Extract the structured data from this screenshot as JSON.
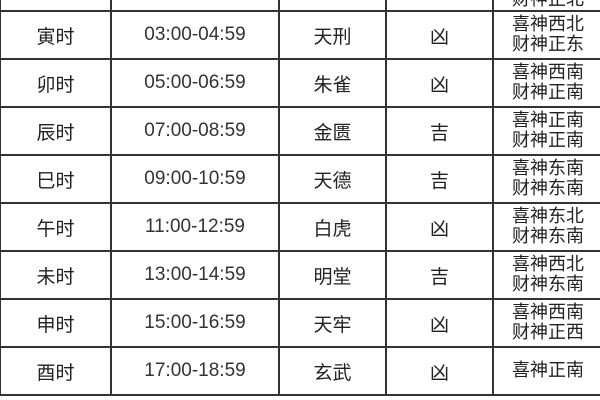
{
  "rows": [
    {
      "shichen": "",
      "time": "",
      "star": "",
      "luck": "",
      "xishen": "",
      "caishen": "财神正北"
    },
    {
      "shichen": "寅时",
      "time": "03:00-04:59",
      "star": "天刑",
      "luck": "凶",
      "xishen": "喜神西北",
      "caishen": "财神正东"
    },
    {
      "shichen": "卯时",
      "time": "05:00-06:59",
      "star": "朱雀",
      "luck": "凶",
      "xishen": "喜神西南",
      "caishen": "财神正南"
    },
    {
      "shichen": "辰时",
      "time": "07:00-08:59",
      "star": "金匮",
      "luck": "吉",
      "xishen": "喜神正南",
      "caishen": "财神正南"
    },
    {
      "shichen": "巳时",
      "time": "09:00-10:59",
      "star": "天德",
      "luck": "吉",
      "xishen": "喜神东南",
      "caishen": "财神东南"
    },
    {
      "shichen": "午时",
      "time": "11:00-12:59",
      "star": "白虎",
      "luck": "凶",
      "xishen": "喜神东北",
      "caishen": "财神东南"
    },
    {
      "shichen": "未时",
      "time": "13:00-14:59",
      "star": "明堂",
      "luck": "吉",
      "xishen": "喜神西北",
      "caishen": "财神东南"
    },
    {
      "shichen": "申时",
      "time": "15:00-16:59",
      "star": "天牢",
      "luck": "凶",
      "xishen": "喜神西南",
      "caishen": "财神正西"
    },
    {
      "shichen": "酉时",
      "time": "17:00-18:59",
      "star": "玄武",
      "luck": "凶",
      "xishen": "喜神正南",
      "caishen": ""
    }
  ]
}
